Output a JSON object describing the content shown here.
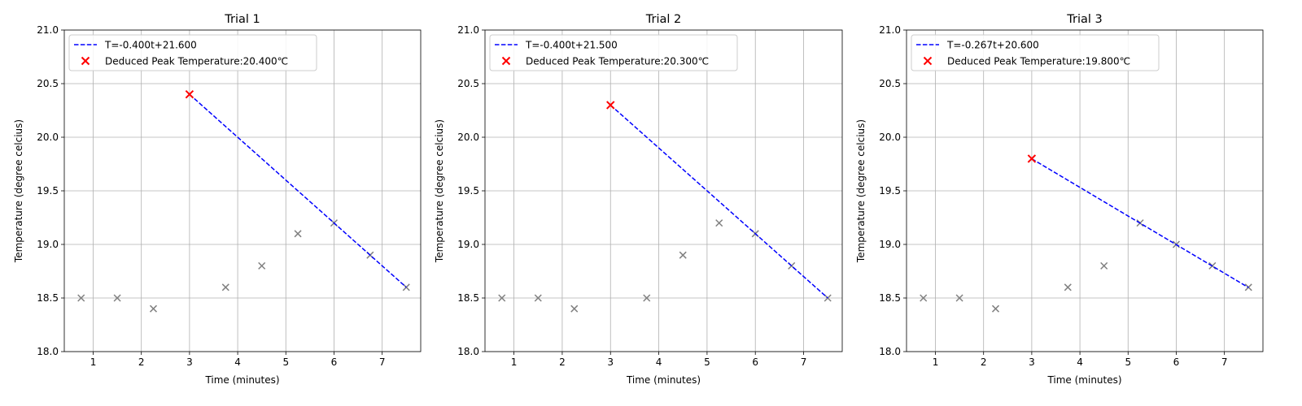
{
  "chart_data": [
    {
      "type": "scatter",
      "title": "Trial 1",
      "xlabel": "Time (minutes)",
      "ylabel": "Temperature (degree celcius)",
      "xlim": [
        0.4,
        7.8
      ],
      "ylim": [
        18.0,
        21.0
      ],
      "xticks": [
        "1",
        "2",
        "3",
        "4",
        "5",
        "6",
        "7"
      ],
      "yticks": [
        "18.0",
        "18.5",
        "19.0",
        "19.5",
        "20.0",
        "20.5",
        "21.0"
      ],
      "grid": true,
      "legend_position": "top-left",
      "data_points": {
        "x": [
          0.75,
          1.5,
          2.25,
          3.75,
          4.5,
          5.25,
          6.0,
          6.75,
          7.5
        ],
        "y": [
          18.5,
          18.5,
          18.4,
          18.6,
          18.8,
          19.1,
          19.2,
          18.9,
          18.6
        ],
        "color": "#808080"
      },
      "fit_line": {
        "label": "T=-0.400t+21.600",
        "slope": -0.4,
        "intercept": 21.6,
        "x_range": [
          3.0,
          7.5
        ],
        "color": "#0000ff"
      },
      "peak": {
        "label": "Deduced Peak Temperature:20.400℃",
        "x": 3.0,
        "y": 20.4,
        "color": "#ff0000"
      }
    },
    {
      "type": "scatter",
      "title": "Trial 2",
      "xlabel": "Time (minutes)",
      "ylabel": "Temperature (degree celcius)",
      "xlim": [
        0.4,
        7.8
      ],
      "ylim": [
        18.0,
        21.0
      ],
      "xticks": [
        "1",
        "2",
        "3",
        "4",
        "5",
        "6",
        "7"
      ],
      "yticks": [
        "18.0",
        "18.5",
        "19.0",
        "19.5",
        "20.0",
        "20.5",
        "21.0"
      ],
      "grid": true,
      "legend_position": "top-left",
      "data_points": {
        "x": [
          0.75,
          1.5,
          2.25,
          3.75,
          4.5,
          5.25,
          6.0,
          6.75,
          7.5
        ],
        "y": [
          18.5,
          18.5,
          18.4,
          18.5,
          18.9,
          19.2,
          19.1,
          18.8,
          18.5
        ],
        "color": "#808080"
      },
      "fit_line": {
        "label": "T=-0.400t+21.500",
        "slope": -0.4,
        "intercept": 21.5,
        "x_range": [
          3.0,
          7.5
        ],
        "color": "#0000ff"
      },
      "peak": {
        "label": "Deduced Peak Temperature:20.300℃",
        "x": 3.0,
        "y": 20.3,
        "color": "#ff0000"
      }
    },
    {
      "type": "scatter",
      "title": "Trial 3",
      "xlabel": "Time (minutes)",
      "ylabel": "Temperature (degree celcius)",
      "xlim": [
        0.4,
        7.8
      ],
      "ylim": [
        18.0,
        21.0
      ],
      "xticks": [
        "1",
        "2",
        "3",
        "4",
        "5",
        "6",
        "7"
      ],
      "yticks": [
        "18.0",
        "18.5",
        "19.0",
        "19.5",
        "20.0",
        "20.5",
        "21.0"
      ],
      "grid": true,
      "legend_position": "top-left",
      "data_points": {
        "x": [
          0.75,
          1.5,
          2.25,
          3.75,
          4.5,
          5.25,
          6.0,
          6.75,
          7.5
        ],
        "y": [
          18.5,
          18.5,
          18.4,
          18.6,
          18.8,
          19.2,
          19.0,
          18.8,
          18.6
        ],
        "color": "#808080"
      },
      "fit_line": {
        "label": "T=-0.267t+20.600",
        "slope": -0.267,
        "intercept": 20.6,
        "x_range": [
          3.0,
          7.5
        ],
        "color": "#0000ff"
      },
      "peak": {
        "label": "Deduced Peak Temperature:19.800℃",
        "x": 3.0,
        "y": 19.8,
        "color": "#ff0000"
      }
    }
  ]
}
